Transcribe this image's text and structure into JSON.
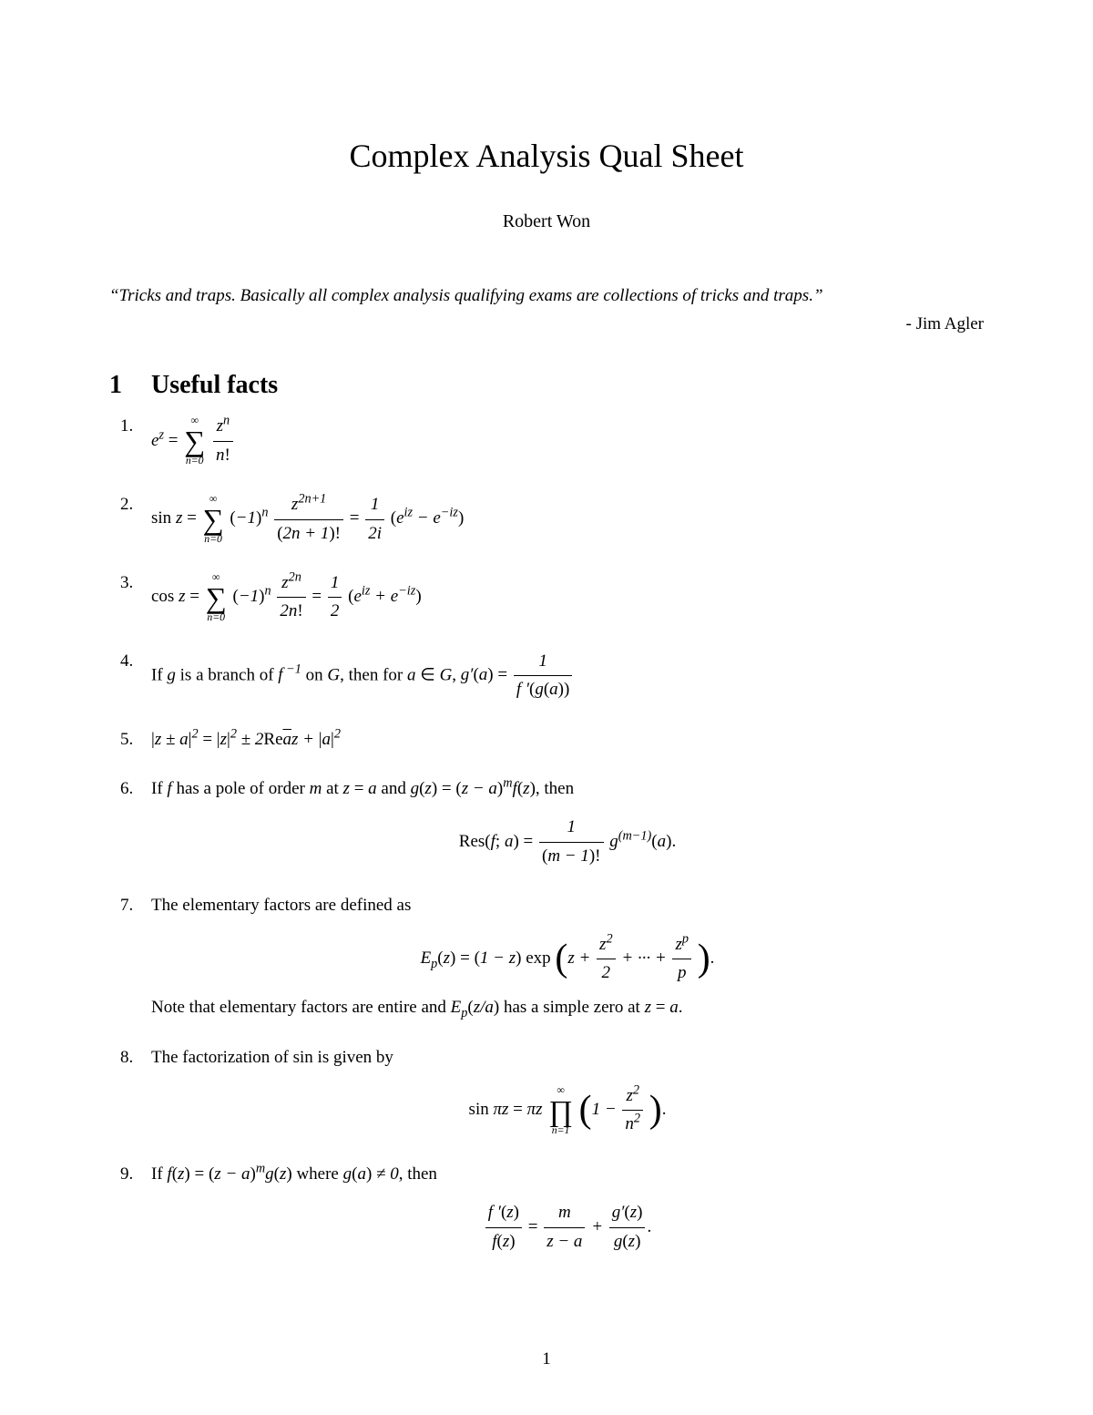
{
  "title": "Complex Analysis Qual Sheet",
  "author": "Robert Won",
  "quote": "“Tricks and traps.  Basically all complex analysis qualifying exams are collections of tricks and traps.”",
  "attribution": "- Jim Agler",
  "section": {
    "number": "1",
    "title": "Useful facts"
  },
  "facts": {
    "f4_a": "If ",
    "f4_b": " is a branch of ",
    "f4_c": " on ",
    "f4_d": ", then for ",
    "f6_a": "If ",
    "f6_b": " has a pole of order ",
    "f6_c": " at ",
    "f6_d": " and ",
    "f6_e": ", then",
    "f7_a": "The elementary factors are defined as",
    "f7_note": "Note that elementary factors are entire and ",
    "f7_note2": " has a simple zero at ",
    "f8_a": "The factorization of sin is given by",
    "f9_a": "If ",
    "f9_b": " where ",
    "f9_c": ", then"
  },
  "pageno": "1",
  "style": {
    "background": "#ffffff",
    "text_color": "#000000",
    "title_fontsize": 36,
    "body_fontsize": 19,
    "heading_fontsize": 28,
    "font_family": "Times New Roman"
  }
}
